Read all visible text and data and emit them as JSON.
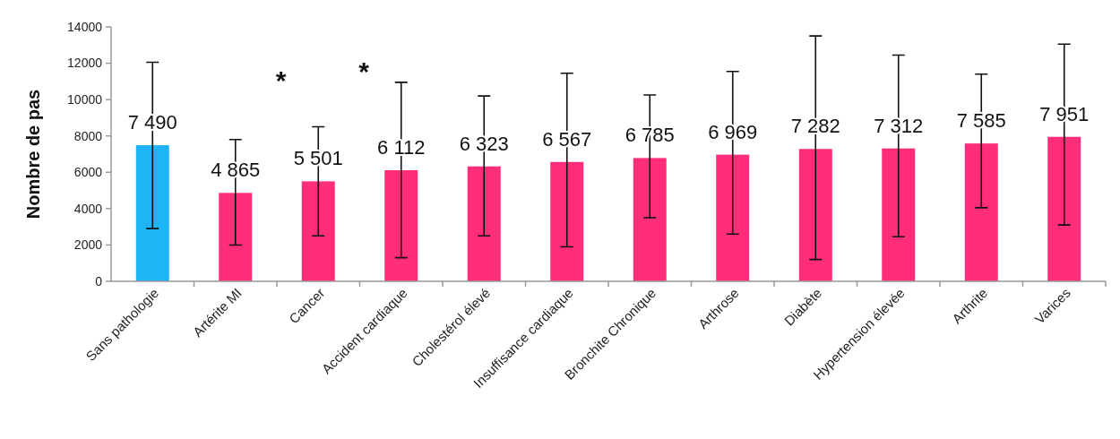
{
  "chart_data": {
    "type": "bar",
    "ylabel": "Nombre de pas",
    "categories": [
      "Sans pathologie",
      "Artérite MI",
      "Cancer",
      "Accident cardiaque",
      "Cholestérol élevé",
      "Insuffisance cardiaque",
      "Bronchite Chronique",
      "Arthrose",
      "Diabète",
      "Hypertension élevée",
      "Arthrite",
      "Varices"
    ],
    "values": [
      7490,
      4865,
      5501,
      6112,
      6323,
      6567,
      6785,
      6969,
      7282,
      7312,
      7585,
      7951
    ],
    "value_labels": [
      "7 490",
      "4 865",
      "5 501",
      "6 112",
      "6 323",
      "6 567",
      "6 785",
      "6 969",
      "7 282",
      "7 312",
      "7 585",
      "7 951"
    ],
    "colors": [
      "#1eb4f5",
      "#ff2d7a",
      "#ff2d7a",
      "#ff2d7a",
      "#ff2d7a",
      "#ff2d7a",
      "#ff2d7a",
      "#ff2d7a",
      "#ff2d7a",
      "#ff2d7a",
      "#ff2d7a",
      "#ff2d7a"
    ],
    "errors": [
      [
        2900,
        12050
      ],
      [
        2000,
        7800
      ],
      [
        2500,
        8500
      ],
      [
        1300,
        10950
      ],
      [
        2500,
        10200
      ],
      [
        1900,
        11450
      ],
      [
        3500,
        10250
      ],
      [
        2600,
        11550
      ],
      [
        1200,
        13500
      ],
      [
        2450,
        12450
      ],
      [
        4050,
        11400
      ],
      [
        3100,
        13050
      ]
    ],
    "annotations": [
      "*",
      "*"
    ],
    "ylim": [
      0,
      14000
    ],
    "yticks": [
      0,
      2000,
      4000,
      6000,
      8000,
      10000,
      12000,
      14000
    ],
    "grid": false
  }
}
